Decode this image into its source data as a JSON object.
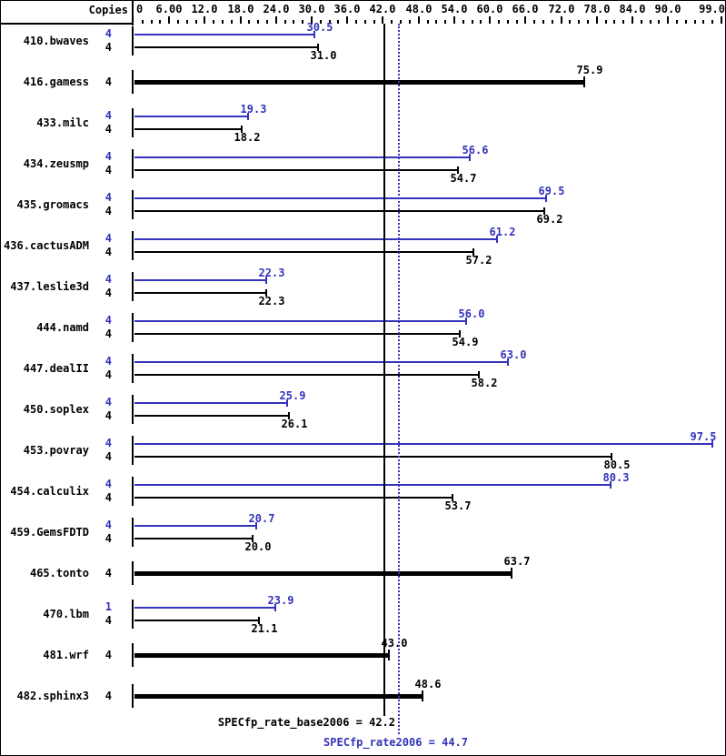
{
  "header": {
    "copies_label": "Copies"
  },
  "colors": {
    "peak": "#3333bb",
    "base": "#000000",
    "background": "#ffffff"
  },
  "chart_data": {
    "type": "bar",
    "orientation": "horizontal",
    "xlabel": "",
    "ylabel": "Copies",
    "axis": {
      "min": 0,
      "max": 99,
      "minor_tick_step": 1.5,
      "major_tick_step": 6,
      "tick_labels": [
        {
          "value": 0,
          "label": "0"
        },
        {
          "value": 6,
          "label": "6.00"
        },
        {
          "value": 12,
          "label": "12.0"
        },
        {
          "value": 18,
          "label": "18.0"
        },
        {
          "value": 24,
          "label": "24.0"
        },
        {
          "value": 30,
          "label": "30.0"
        },
        {
          "value": 36,
          "label": "36.0"
        },
        {
          "value": 42,
          "label": "42.0"
        },
        {
          "value": 48,
          "label": "48.0"
        },
        {
          "value": 54,
          "label": "54.0"
        },
        {
          "value": 60,
          "label": "60.0"
        },
        {
          "value": 66,
          "label": "66.0"
        },
        {
          "value": 72,
          "label": "72.0"
        },
        {
          "value": 78,
          "label": "78.0"
        },
        {
          "value": 84,
          "label": "84.0"
        },
        {
          "value": 90,
          "label": "90.0"
        },
        {
          "value": 99,
          "label": "99.0"
        }
      ]
    },
    "legend": {
      "peak_series": "SPECfp_rate2006 (peak, blue)",
      "base_series": "SPECfp_rate_base2006 (base, black)"
    },
    "benchmarks": [
      {
        "name": "410.bwaves",
        "peak_copies": "4",
        "peak": 30.5,
        "peak_label": "30.5",
        "base_copies": "4",
        "base": 31.0,
        "base_label": "31.0"
      },
      {
        "name": "416.gamess",
        "base_copies": "4",
        "base": 75.9,
        "base_label": "75.9"
      },
      {
        "name": "433.milc",
        "peak_copies": "4",
        "peak": 19.3,
        "peak_label": "19.3",
        "base_copies": "4",
        "base": 18.2,
        "base_label": "18.2"
      },
      {
        "name": "434.zeusmp",
        "peak_copies": "4",
        "peak": 56.6,
        "peak_label": "56.6",
        "base_copies": "4",
        "base": 54.7,
        "base_label": "54.7"
      },
      {
        "name": "435.gromacs",
        "peak_copies": "4",
        "peak": 69.5,
        "peak_label": "69.5",
        "base_copies": "4",
        "base": 69.2,
        "base_label": "69.2"
      },
      {
        "name": "436.cactusADM",
        "peak_copies": "4",
        "peak": 61.2,
        "peak_label": "61.2",
        "base_copies": "4",
        "base": 57.2,
        "base_label": "57.2"
      },
      {
        "name": "437.leslie3d",
        "peak_copies": "4",
        "peak": 22.3,
        "peak_label": "22.3",
        "base_copies": "4",
        "base": 22.3,
        "base_label": "22.3"
      },
      {
        "name": "444.namd",
        "peak_copies": "4",
        "peak": 56.0,
        "peak_label": "56.0",
        "base_copies": "4",
        "base": 54.9,
        "base_label": "54.9"
      },
      {
        "name": "447.dealII",
        "peak_copies": "4",
        "peak": 63.0,
        "peak_label": "63.0",
        "base_copies": "4",
        "base": 58.2,
        "base_label": "58.2"
      },
      {
        "name": "450.soplex",
        "peak_copies": "4",
        "peak": 25.9,
        "peak_label": "25.9",
        "base_copies": "4",
        "base": 26.1,
        "base_label": "26.1"
      },
      {
        "name": "453.povray",
        "peak_copies": "4",
        "peak": 97.5,
        "peak_label": "97.5",
        "base_copies": "4",
        "base": 80.5,
        "base_label": "80.5"
      },
      {
        "name": "454.calculix",
        "peak_copies": "4",
        "peak": 80.3,
        "peak_label": "80.3",
        "base_copies": "4",
        "base": 53.7,
        "base_label": "53.7"
      },
      {
        "name": "459.GemsFDTD",
        "peak_copies": "4",
        "peak": 20.7,
        "peak_label": "20.7",
        "base_copies": "4",
        "base": 20.0,
        "base_label": "20.0"
      },
      {
        "name": "465.tonto",
        "base_copies": "4",
        "base": 63.7,
        "base_label": "63.7"
      },
      {
        "name": "470.lbm",
        "peak_copies": "1",
        "peak": 23.9,
        "peak_label": "23.9",
        "base_copies": "4",
        "base": 21.1,
        "base_label": "21.1"
      },
      {
        "name": "481.wrf",
        "base_copies": "4",
        "base": 43.0,
        "base_label": "43.0"
      },
      {
        "name": "482.sphinx3",
        "base_copies": "4",
        "base": 48.6,
        "base_label": "48.6"
      }
    ],
    "reference_lines": [
      {
        "name": "SPECfp_rate_base2006",
        "value": 42.2,
        "label": "SPECfp_rate_base2006 = 42.2",
        "style": "solid",
        "color": "#000000"
      },
      {
        "name": "SPECfp_rate2006",
        "value": 44.7,
        "label": "SPECfp_rate2006 = 44.7",
        "style": "dotted",
        "color": "#3333bb"
      }
    ]
  }
}
